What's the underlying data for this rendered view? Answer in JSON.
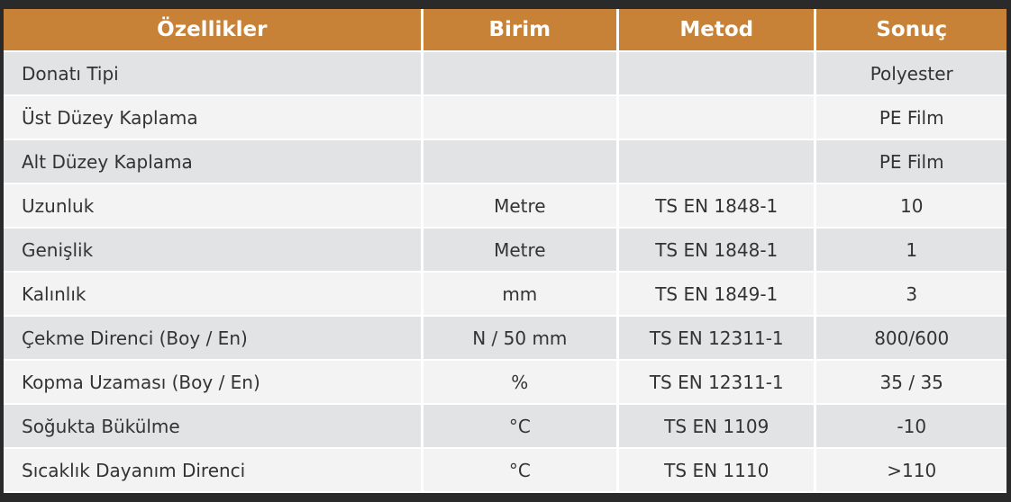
{
  "headers": [
    "Özellikler",
    "Birim",
    "Metod",
    "Sonuç"
  ],
  "rows": [
    [
      "Donatı Tipi",
      "",
      "",
      "Polyester"
    ],
    [
      "Üst Düzey Kaplama",
      "",
      "",
      "PE Film"
    ],
    [
      "Alt Düzey Kaplama",
      "",
      "",
      "PE Film"
    ],
    [
      "Uzunluk",
      "Metre",
      "TS EN 1848-1",
      "10"
    ],
    [
      "Genişlik",
      "Metre",
      "TS EN 1848-1",
      "1"
    ],
    [
      "Kalınlık",
      "mm",
      "TS EN 1849-1",
      "3"
    ],
    [
      "Çekme Direnci (Boy / En)",
      "N / 50 mm",
      "TS EN 12311-1",
      "800/600"
    ],
    [
      "Kopma Uzaması (Boy / En)",
      "%",
      "TS EN 12311-1",
      "35 / 35"
    ],
    [
      "Soğukta Bükülme",
      "°C",
      "TS EN 1109",
      "-10"
    ],
    [
      "Sıcaklık Dayanım Direnci",
      "°C",
      "TS EN 1110",
      ">110"
    ]
  ],
  "colors": {
    "header": "#c78237",
    "row_odd": "#e2e3e4",
    "row_even": "#f3f3f3",
    "frame": "#2a2a2a"
  }
}
